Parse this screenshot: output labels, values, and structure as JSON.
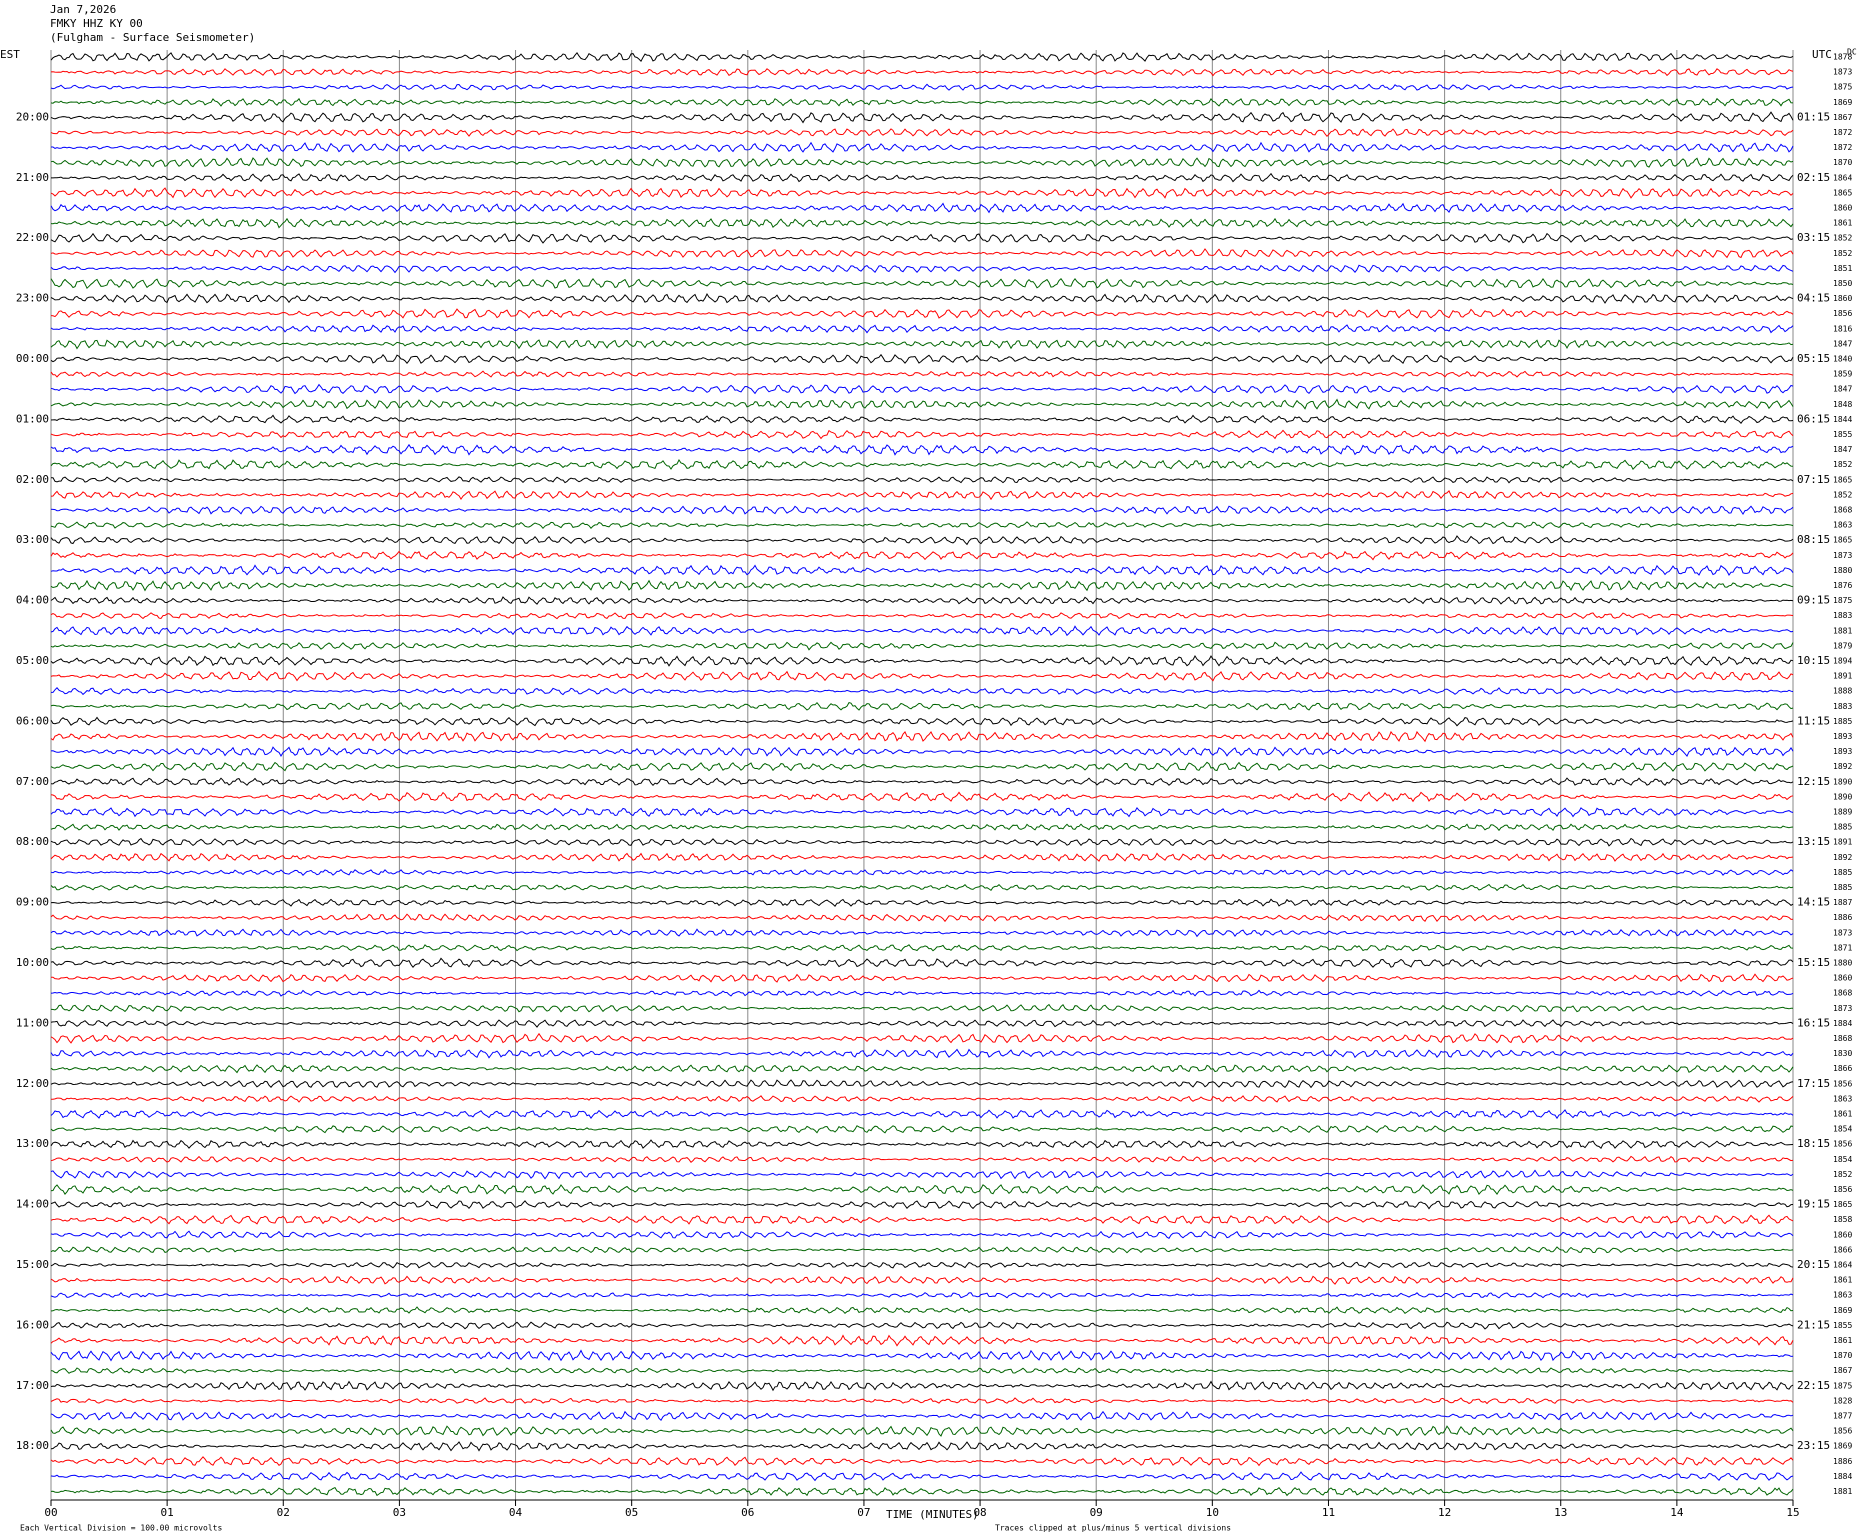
{
  "chart_data": {
    "type": "helicorder",
    "title": "Jan 7,2026",
    "station": "FMKY HHZ KY 00",
    "subtitle": "(Fulgham - Surface Seismometer)",
    "left_zone": "EST",
    "right_zone": "UTC",
    "dc_label": "DC",
    "x_label": "TIME (MINUTES)",
    "scale_note": "Each Vertical Division =  100.00 microvolts",
    "clip_note": "Traces clipped at plus/minus 5 vertical divisions",
    "xlim": [
      0,
      15
    ],
    "xticks": [
      {
        "value": 0,
        "label": "00"
      },
      {
        "value": 1,
        "label": "01"
      },
      {
        "value": 2,
        "label": "02"
      },
      {
        "value": 3,
        "label": "03"
      },
      {
        "value": 4,
        "label": "04"
      },
      {
        "value": 5,
        "label": "05"
      },
      {
        "value": 6,
        "label": "06"
      },
      {
        "value": 7,
        "label": "07"
      },
      {
        "value": 8,
        "label": "08"
      },
      {
        "value": 9,
        "label": "09"
      },
      {
        "value": 10,
        "label": "10"
      },
      {
        "value": 11,
        "label": "11"
      },
      {
        "value": 12,
        "label": "12"
      },
      {
        "value": 13,
        "label": "13"
      },
      {
        "value": 14,
        "label": "14"
      },
      {
        "value": 15,
        "label": "15"
      }
    ],
    "grid": true,
    "trace_colors": [
      "#000000",
      "#ff0000",
      "#0000ff",
      "#006400"
    ],
    "left_labels": [
      "20:00",
      "21:00",
      "22:00",
      "23:00",
      "00:00",
      "01:00",
      "02:00",
      "03:00",
      "04:00",
      "05:00",
      "06:00",
      "07:00",
      "08:00",
      "09:00",
      "10:00",
      "11:00",
      "12:00",
      "13:00",
      "14:00",
      "15:00",
      "16:00",
      "17:00",
      "18:00"
    ],
    "right_labels": [
      "01:15",
      "02:15",
      "03:15",
      "04:15",
      "05:15",
      "06:15",
      "07:15",
      "08:15",
      "09:15",
      "10:15",
      "11:15",
      "12:15",
      "13:15",
      "14:15",
      "15:15",
      "16:15",
      "17:15",
      "18:15",
      "19:15",
      "20:15",
      "21:15",
      "22:15",
      "23:15"
    ],
    "trace_values": [
      1878,
      1873,
      1875,
      1869,
      1867,
      1872,
      1872,
      1870,
      1864,
      1865,
      1860,
      1861,
      1852,
      1852,
      1851,
      1850,
      1860,
      1856,
      1816,
      1847,
      1840,
      1859,
      1847,
      1848,
      1844,
      1855,
      1847,
      1852,
      1865,
      1852,
      1868,
      1863,
      1865,
      1873,
      1880,
      1876,
      1875,
      1883,
      1881,
      1879,
      1894,
      1891,
      1888,
      1883,
      1885,
      1893,
      1893,
      1892,
      1890,
      1890,
      1889,
      1885,
      1891,
      1892,
      1885,
      1885,
      1887,
      1886,
      1873,
      1871,
      1880,
      1860,
      1868,
      1873,
      1884,
      1868,
      1830,
      1866,
      1856,
      1863,
      1861,
      1854,
      1856,
      1854,
      1852,
      1856,
      1865,
      1858,
      1860,
      1866,
      1864,
      1861,
      1863,
      1869,
      1855,
      1861,
      1870,
      1867,
      1875,
      1828,
      1877,
      1856,
      1869,
      1886,
      1884,
      1881
    ]
  }
}
